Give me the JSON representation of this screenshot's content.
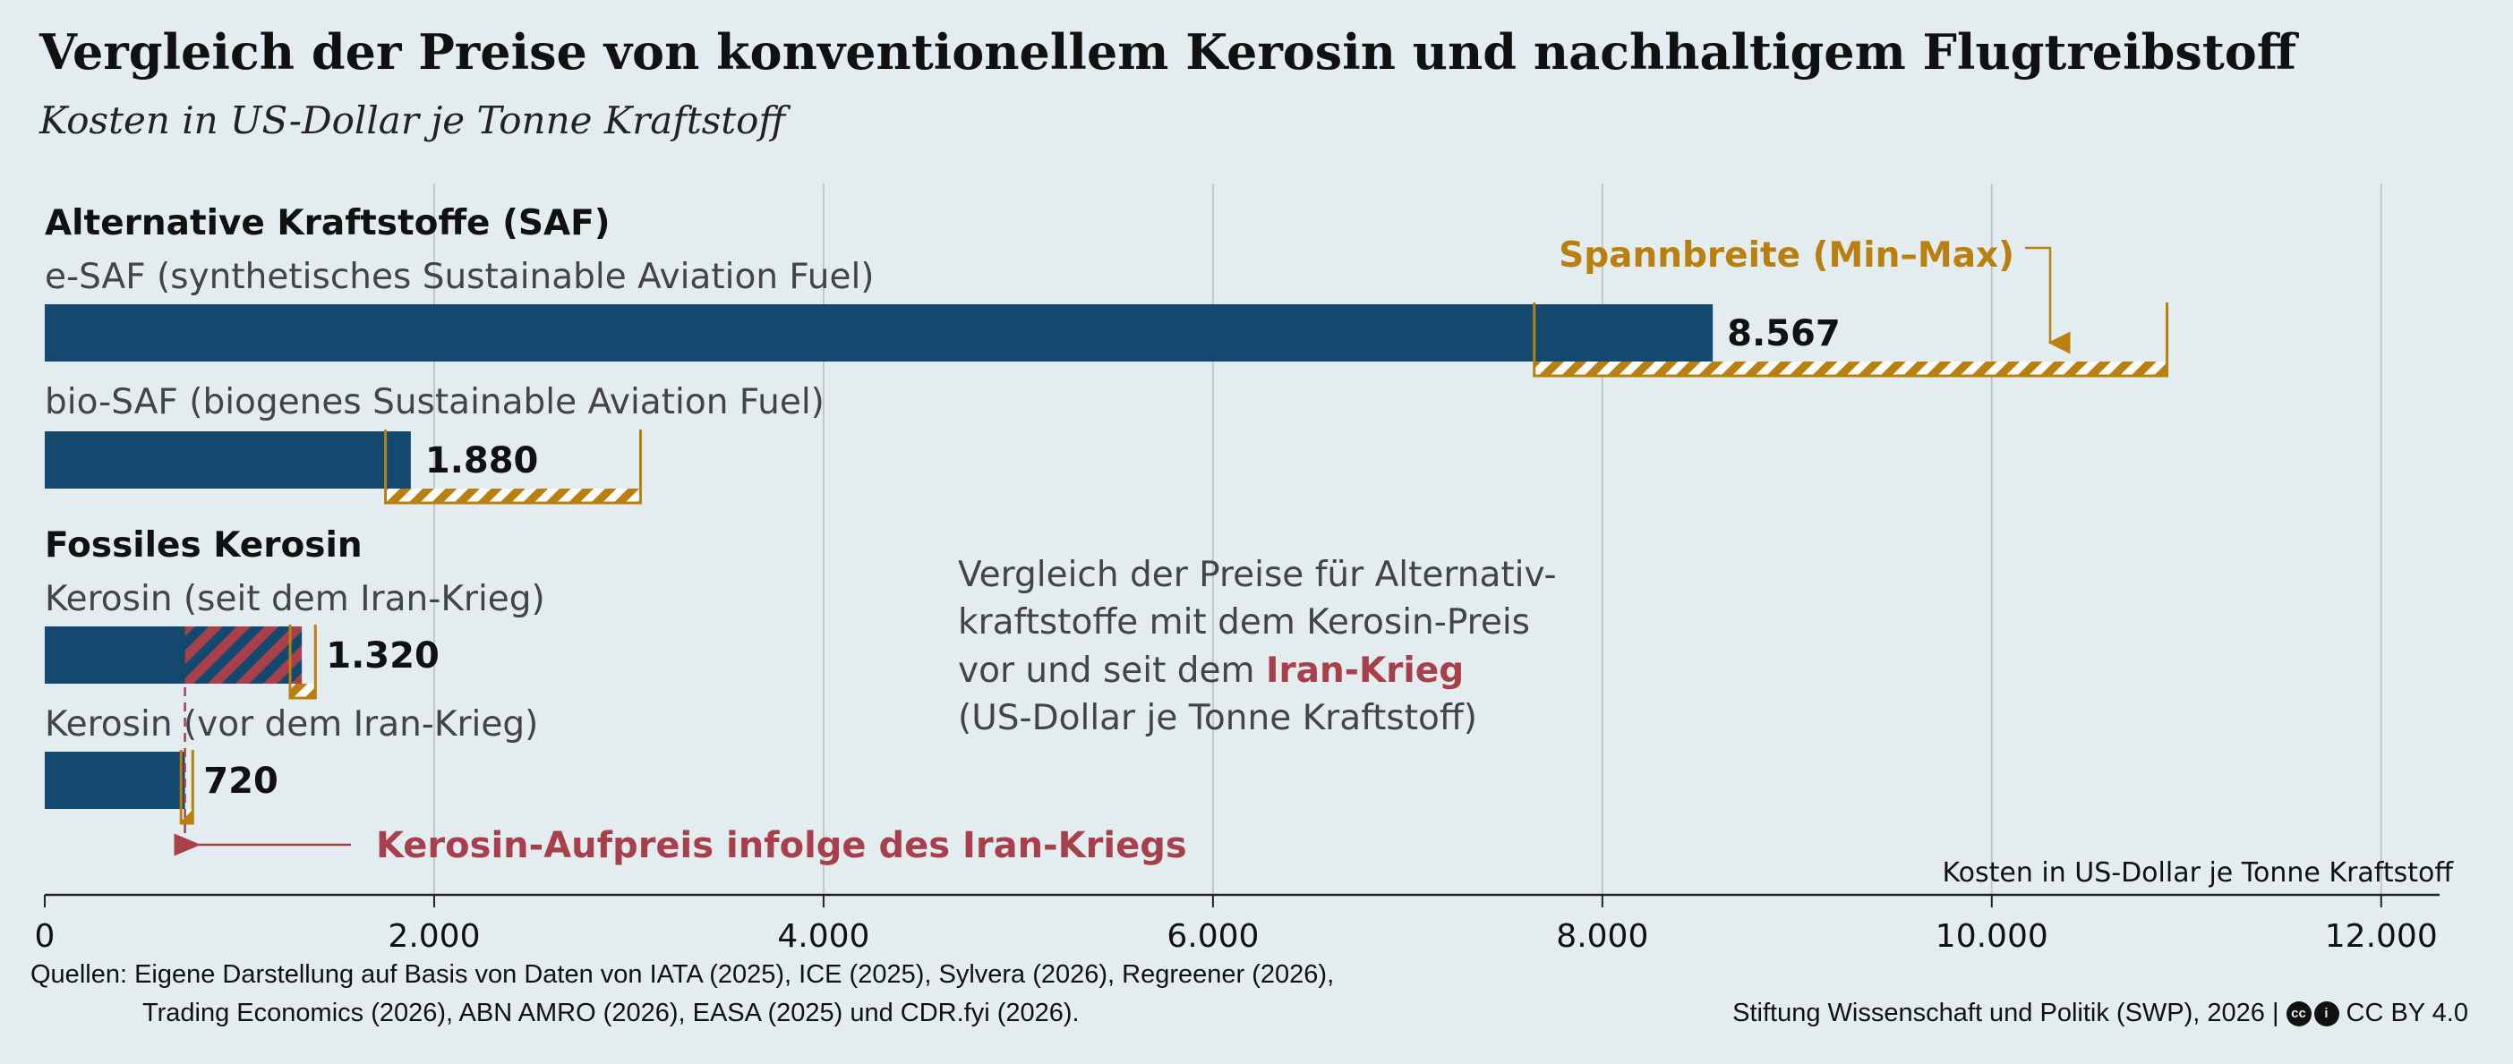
{
  "title": "Vergleich der Preise von konventionellem Kerosin und nachhaltigem Flugtreibstoff",
  "subtitle": "Kosten in US-Dollar je Tonne Kraftstoff",
  "colors": {
    "bar": "#13486f",
    "range": "#b9800f",
    "war": "#a8404c",
    "background": "#e3ecef",
    "grid": "#c0c8cc"
  },
  "chart_data": {
    "type": "bar",
    "orientation": "horizontal",
    "groups": [
      {
        "label": "Alternative Kraftstoffe (SAF)"
      },
      {
        "label": "Fossiles Kerosin"
      }
    ],
    "bars": [
      {
        "group": 0,
        "label": "e-SAF (synthetisches Sustainable Aviation Fuel)",
        "value": 8567,
        "value_label": "8.567",
        "range": [
          7650,
          10900
        ]
      },
      {
        "group": 0,
        "label": "bio-SAF (biogenes Sustainable Aviation Fuel)",
        "value": 1880,
        "value_label": "1.880",
        "range": [
          1750,
          3060
        ]
      },
      {
        "group": 1,
        "label": "Kerosin (seit dem Iran-Krieg)",
        "value": 1320,
        "value_label": "1.320",
        "range": [
          1260,
          1390
        ],
        "war_premium_from": 720
      },
      {
        "group": 1,
        "label": "Kerosin (vor dem Iran-Krieg)",
        "value": 720,
        "value_label": "720",
        "range": [
          700,
          760
        ]
      }
    ],
    "xlim": [
      0,
      12300
    ],
    "ticks": [
      0,
      2000,
      4000,
      6000,
      8000,
      10000,
      12000
    ],
    "tick_labels": [
      "0",
      "2.000",
      "4.000",
      "6.000",
      "8.000",
      "10.000",
      "12.000"
    ],
    "xlabel": "Kosten in US-Dollar je Tonne Kraftstoff",
    "grid": true,
    "annotations": {
      "range_label": "Spannbreite (Min–Max)",
      "premium_label": "Kerosin-Aufpreis infolge des Iran-Kriegs",
      "note": {
        "line1": "Vergleich der Preise für Alternativ-",
        "line2": "kraftstoffe mit dem Kerosin-Preis",
        "line3_prefix": "vor und seit dem ",
        "line3_highlight": "Iran-Krieg",
        "line4": "(US-Dollar je Tonne Kraftstoff)"
      }
    }
  },
  "footer": {
    "sources_line1": "Quellen: Eigene Darstellung auf Basis von Daten von IATA (2025), ICE (2025), Sylvera (2026), Regreener (2026),",
    "sources_line2": "Trading Economics (2026), ABN AMRO (2026), EASA (2025) und CDR.fyi (2026).",
    "credit_prefix": "Stiftung Wissenschaft und Politik (SWP), 2026 |",
    "license": "CC BY 4.0",
    "cc_icon_text": "cc",
    "by_icon_text": "i"
  }
}
